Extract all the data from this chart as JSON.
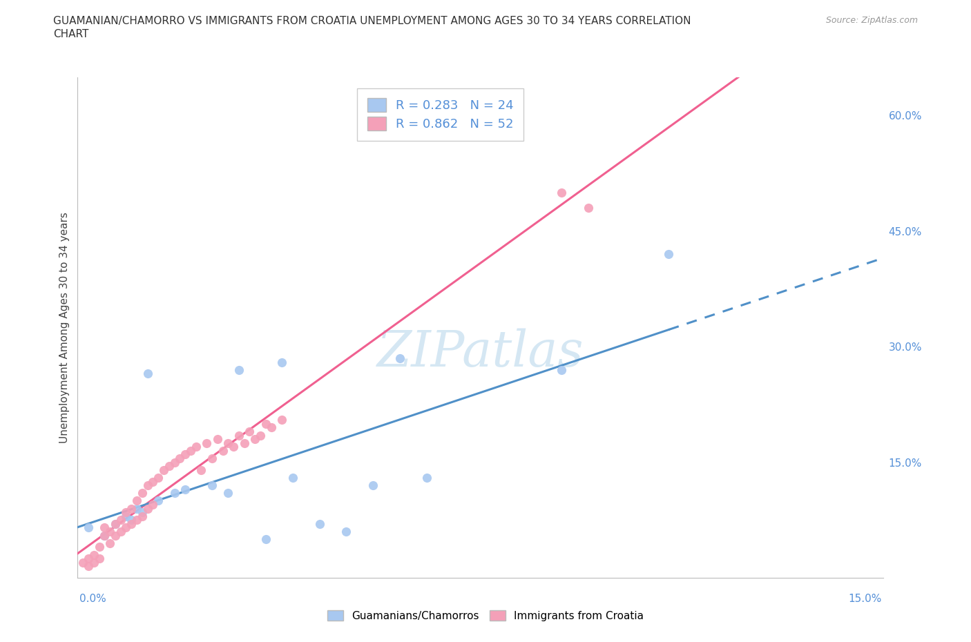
{
  "title_line1": "GUAMANIAN/CHAMORRO VS IMMIGRANTS FROM CROATIA UNEMPLOYMENT AMONG AGES 30 TO 34 YEARS CORRELATION",
  "title_line2": "CHART",
  "source": "Source: ZipAtlas.com",
  "ylabel": "Unemployment Among Ages 30 to 34 years",
  "ylabel_right_ticks": [
    "15.0%",
    "30.0%",
    "45.0%",
    "60.0%"
  ],
  "ylabel_right_values": [
    0.15,
    0.3,
    0.45,
    0.6
  ],
  "xlim": [
    0.0,
    0.15
  ],
  "ylim": [
    0.0,
    0.65
  ],
  "legend_blue_R": "R = 0.283",
  "legend_blue_N": "N = 24",
  "legend_pink_R": "R = 0.862",
  "legend_pink_N": "N = 52",
  "blue_color": "#A8C8F0",
  "pink_color": "#F4A0B8",
  "blue_line_color": "#5090C8",
  "pink_line_color": "#F06090",
  "grid_color": "#DDDDDD",
  "axis_label_color": "#5590D8",
  "title_color": "#333333",
  "source_color": "#999999",
  "watermark_color": "#C8E0F0",
  "background_color": "#FFFFFF",
  "guam_x": [
    0.002,
    0.005,
    0.007,
    0.009,
    0.01,
    0.011,
    0.012,
    0.013,
    0.015,
    0.018,
    0.02,
    0.025,
    0.028,
    0.03,
    0.035,
    0.038,
    0.04,
    0.045,
    0.05,
    0.055,
    0.06,
    0.065,
    0.09,
    0.11
  ],
  "guam_y": [
    0.065,
    0.055,
    0.07,
    0.08,
    0.075,
    0.09,
    0.085,
    0.265,
    0.1,
    0.11,
    0.115,
    0.12,
    0.11,
    0.27,
    0.05,
    0.28,
    0.13,
    0.07,
    0.06,
    0.12,
    0.285,
    0.13,
    0.27,
    0.42
  ],
  "croatia_x": [
    0.001,
    0.002,
    0.002,
    0.003,
    0.003,
    0.004,
    0.004,
    0.005,
    0.005,
    0.006,
    0.006,
    0.007,
    0.007,
    0.008,
    0.008,
    0.009,
    0.009,
    0.01,
    0.01,
    0.011,
    0.011,
    0.012,
    0.012,
    0.013,
    0.013,
    0.014,
    0.014,
    0.015,
    0.016,
    0.017,
    0.018,
    0.019,
    0.02,
    0.021,
    0.022,
    0.023,
    0.024,
    0.025,
    0.026,
    0.027,
    0.028,
    0.029,
    0.03,
    0.031,
    0.032,
    0.033,
    0.034,
    0.035,
    0.036,
    0.038,
    0.09,
    0.095
  ],
  "croatia_y": [
    0.02,
    0.025,
    0.015,
    0.03,
    0.02,
    0.04,
    0.025,
    0.055,
    0.065,
    0.06,
    0.045,
    0.07,
    0.055,
    0.075,
    0.06,
    0.085,
    0.065,
    0.09,
    0.07,
    0.1,
    0.075,
    0.11,
    0.08,
    0.12,
    0.09,
    0.125,
    0.095,
    0.13,
    0.14,
    0.145,
    0.15,
    0.155,
    0.16,
    0.165,
    0.17,
    0.14,
    0.175,
    0.155,
    0.18,
    0.165,
    0.175,
    0.17,
    0.185,
    0.175,
    0.19,
    0.18,
    0.185,
    0.2,
    0.195,
    0.205,
    0.5,
    0.48
  ]
}
